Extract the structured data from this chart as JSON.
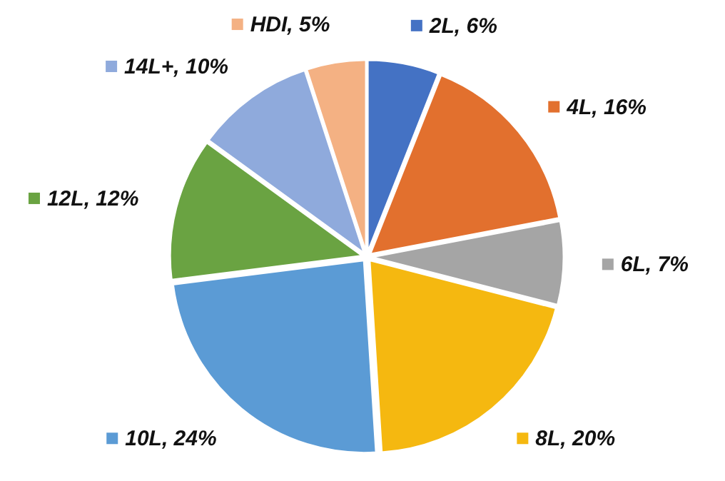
{
  "chart_data": {
    "type": "pie",
    "categories": [
      "2L",
      "4L",
      "6L",
      "8L",
      "10L",
      "12L",
      "14L+",
      "HDI"
    ],
    "values": [
      6,
      16,
      7,
      20,
      24,
      12,
      10,
      5
    ],
    "value_labels": [
      "6%",
      "16%",
      "7%",
      "20%",
      "24%",
      "12%",
      "10%",
      "5%"
    ],
    "colors": [
      "#4472c4",
      "#e2702e",
      "#a5a5a5",
      "#f5b810",
      "#5b9bd5",
      "#6aa342",
      "#8faadc",
      "#f4b183"
    ],
    "legend": true
  }
}
